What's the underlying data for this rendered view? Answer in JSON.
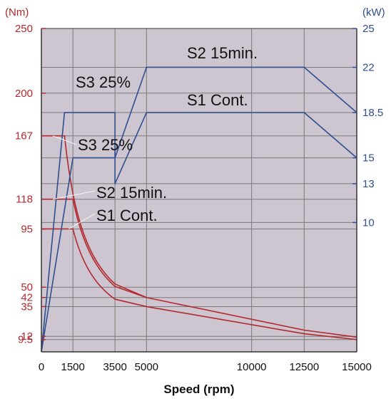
{
  "chart_data": {
    "type": "line",
    "xlabel": "Speed (rpm)",
    "y_unit_left": "(Nm)",
    "y_unit_right": "(kW)",
    "xlim": [
      0,
      15000
    ],
    "ylim_left": [
      0,
      250
    ],
    "ylim_right": [
      0,
      25
    ],
    "x_ticks": [
      0,
      1500,
      3500,
      5000,
      10000,
      12500,
      15000
    ],
    "left_ticks": [
      9.5,
      12,
      35,
      42,
      50,
      95,
      118,
      167,
      200,
      250
    ],
    "right_ticks": [
      10,
      13,
      15,
      18.5,
      22,
      25
    ],
    "grid": true,
    "colors": {
      "plot_bg": "#cdc6d0",
      "torque": "#b3282d",
      "power": "#2f4f8f",
      "left_axis": "#b3282d",
      "right_axis": "#2f4f8f",
      "grid": "#7a7a7a"
    },
    "series": [
      {
        "name": "S1 Cont.",
        "kind": "torque",
        "x": [
          0,
          1500,
          3500,
          5000,
          12500,
          15000
        ],
        "y": [
          95,
          95,
          41,
          35,
          14,
          9.5
        ]
      },
      {
        "name": "S2 15min.",
        "kind": "torque",
        "x": [
          0,
          1500,
          3500,
          5000,
          12500,
          15000
        ],
        "y": [
          118,
          118,
          50,
          42,
          16.8,
          11.4
        ]
      },
      {
        "name": "S3 25%",
        "kind": "torque",
        "x": [
          0,
          1100,
          3500,
          5000
        ],
        "y": [
          167,
          167,
          50,
          42
        ]
      },
      {
        "name": "S1 Cont.",
        "kind": "power",
        "x": [
          0,
          1500,
          3500,
          3500,
          5000,
          12500,
          15000
        ],
        "y": [
          0,
          15,
          15,
          13,
          18.5,
          18.5,
          15
        ]
      },
      {
        "name": "S2 15min.",
        "kind": "power",
        "x": [
          0,
          1100,
          3500,
          3500,
          5000,
          12500,
          15000
        ],
        "y": [
          0,
          18.5,
          18.5,
          15,
          22,
          22,
          18.5
        ]
      }
    ],
    "annotations": [
      {
        "text": "S2 15min.",
        "target": "S2 15min.",
        "kind": "power"
      },
      {
        "text": "S3 25%",
        "target": "S3 25%",
        "kind": "power"
      },
      {
        "text": "S1 Cont.",
        "target": "S1 Cont.",
        "kind": "power"
      },
      {
        "text": "S3 25%",
        "target": "S3 25%",
        "kind": "torque"
      },
      {
        "text": "S2 15min.",
        "target": "S2 15min.",
        "kind": "torque"
      },
      {
        "text": "S1 Cont.",
        "target": "S1 Cont.",
        "kind": "torque"
      }
    ]
  }
}
